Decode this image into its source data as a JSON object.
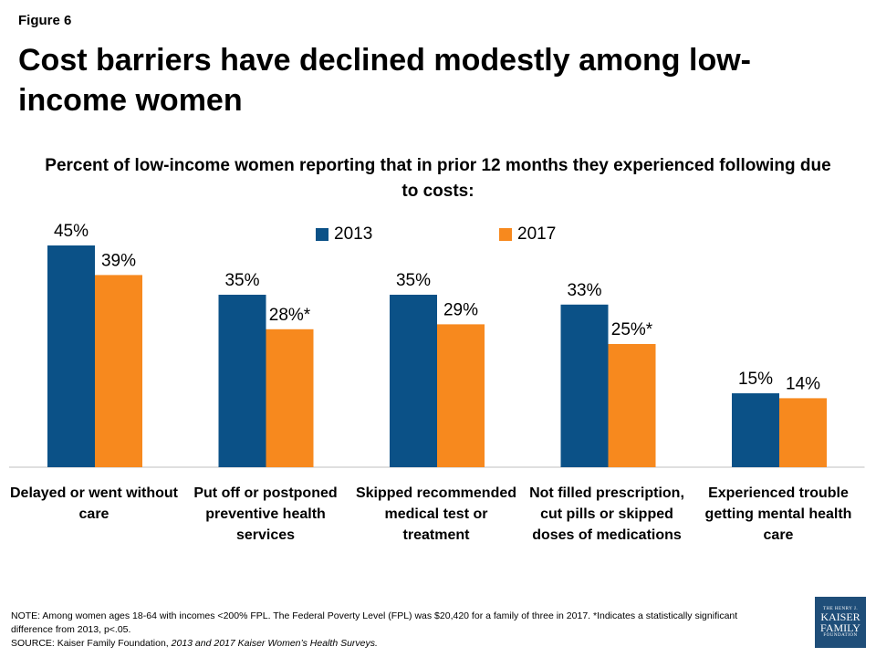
{
  "figure_label": "Figure 6",
  "headline": "Cost barriers have declined modestly among low-income women",
  "logo": {
    "line1": "THE HENRY J.",
    "line2": "KAISER",
    "line3": "FAMILY",
    "line4": "FOUNDATION"
  },
  "note": {
    "line1": "NOTE: Among women ages 18-64 with incomes <200% FPL. The Federal Poverty Level (FPL) was $20,420 for a family of three in 2017. *Indicates a statistically significant difference from 2013, p<.05.",
    "line2_prefix": "SOURCE: Kaiser Family Foundation, ",
    "line2_italic": "2013 and 2017 Kaiser Women’s Health Surveys.",
    "line2_suffix": ""
  },
  "colors": {
    "s2013": "#0b5187",
    "s2017": "#f7891e",
    "axis": "#bfbfbf"
  },
  "chart_data": {
    "type": "bar",
    "title": "Percent of low-income women reporting that in prior 12 months they experienced following due to costs:",
    "categories": [
      "Delayed or went without care",
      "Put off or postponed preventive health services",
      "Skipped recommended medical test or treatment",
      "Not filled prescription, cut pills or skipped doses of medications",
      "Experienced trouble getting mental health care"
    ],
    "series": [
      {
        "name": "2013",
        "values": [
          45,
          35,
          35,
          33,
          15
        ],
        "labels": [
          "45%",
          "35%",
          "35%",
          "33%",
          "15%"
        ]
      },
      {
        "name": "2017",
        "values": [
          39,
          28,
          29,
          25,
          14
        ],
        "labels": [
          "39%",
          "28%*",
          "29%",
          "25%*",
          "14%"
        ]
      }
    ],
    "ylim": [
      0,
      45
    ],
    "legend": "top-center",
    "grid": false
  }
}
